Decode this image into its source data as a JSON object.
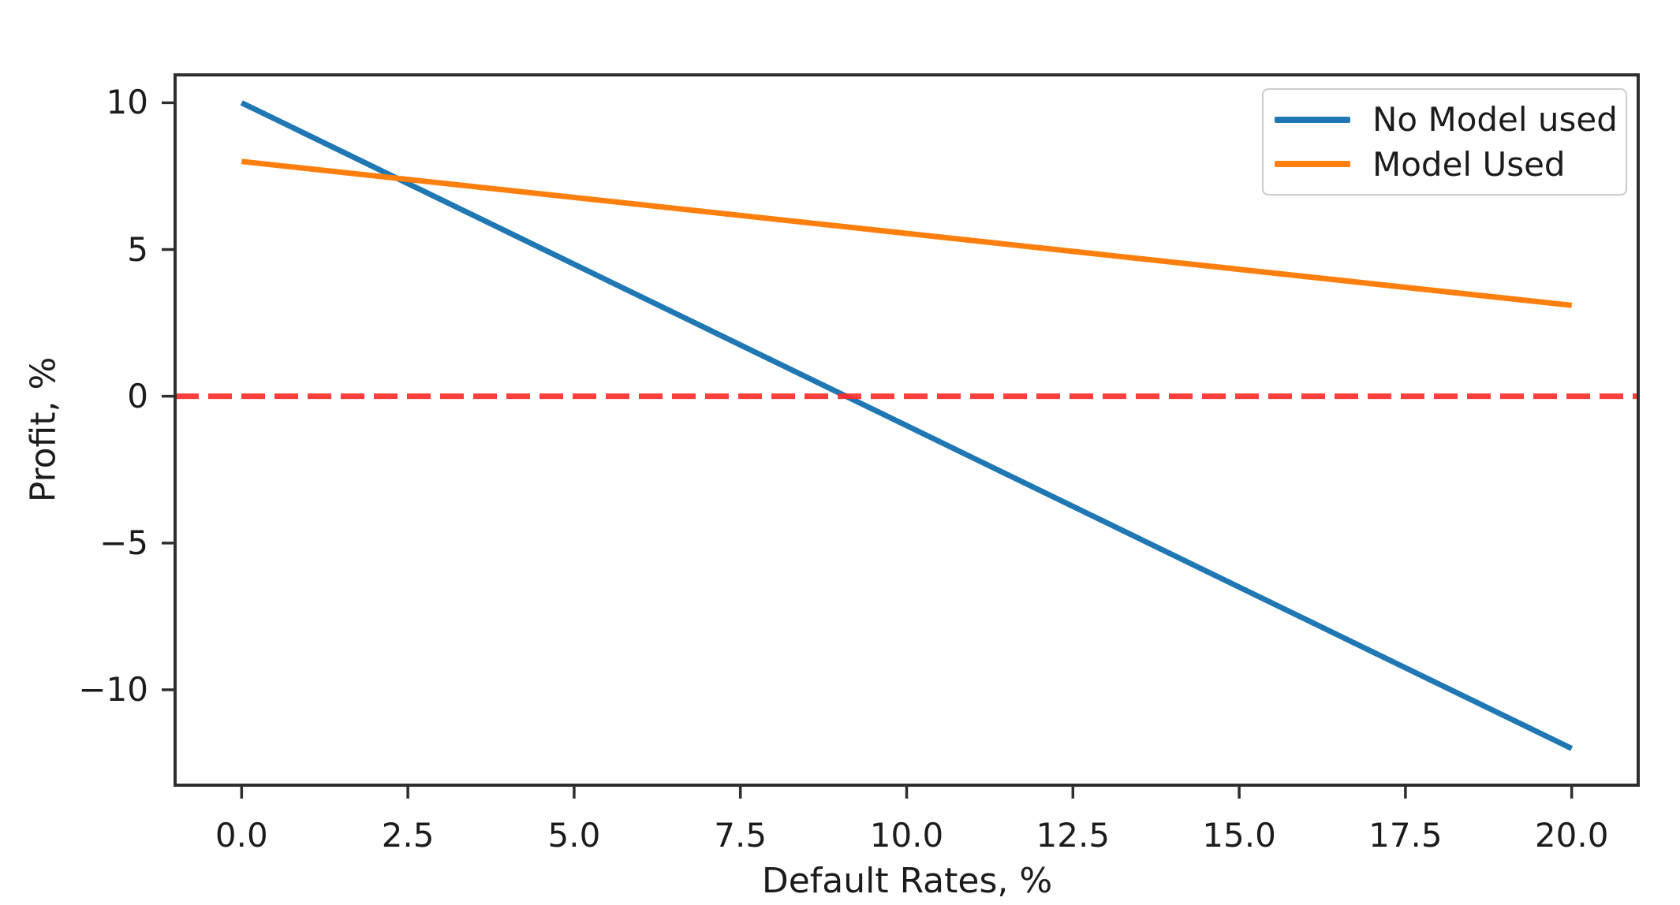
{
  "figure": {
    "background": "#ffffff",
    "text_color": "#1c1c1c",
    "spine_color": "#2e2e2e"
  },
  "chart_data": {
    "type": "line",
    "title": "",
    "xlabel": "Default Rates, %",
    "ylabel": "Profit, %",
    "xlim": [
      -1,
      21
    ],
    "ylim": [
      -13.25,
      10.95
    ],
    "grid": false,
    "x_ticks": {
      "values": [
        0,
        2.5,
        5,
        7.5,
        10,
        12.5,
        15,
        17.5,
        20
      ],
      "labels": [
        "0.0",
        "2.5",
        "5.0",
        "7.5",
        "10.0",
        "12.5",
        "15.0",
        "17.5",
        "20.0"
      ]
    },
    "y_ticks": {
      "values": [
        -10,
        -5,
        0,
        5,
        10
      ],
      "labels": [
        "−10",
        "−5",
        "0",
        "5",
        "10"
      ]
    },
    "series": [
      {
        "name": "No Model used",
        "color": "#1f77b4",
        "points": [
          [
            0,
            10
          ],
          [
            20,
            -12
          ]
        ]
      },
      {
        "name": "Model Used",
        "color": "#ff7f0e",
        "points": [
          [
            0,
            8
          ],
          [
            20,
            3.1
          ]
        ]
      }
    ],
    "reference_line": {
      "y": 0,
      "color": "#ff2a2a",
      "style": "dashed",
      "opacity": 0.9
    },
    "legend": {
      "position": "upper right",
      "entries": [
        "No Model used",
        "Model Used"
      ]
    }
  }
}
